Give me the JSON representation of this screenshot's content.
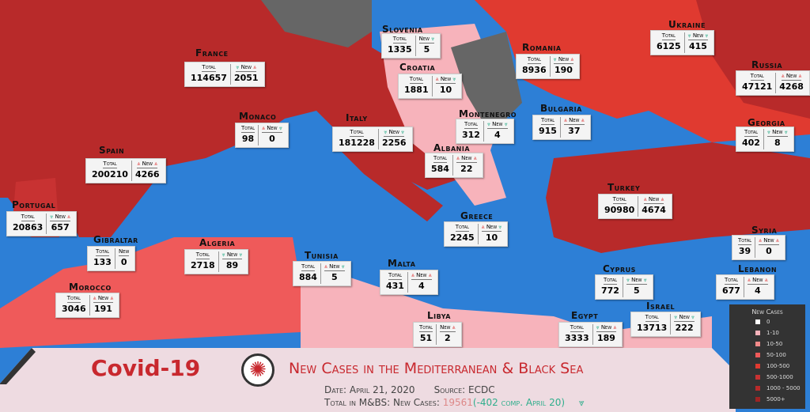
{
  "banner": {
    "title": "Covid-19",
    "subtitle": "New Cases in the Mediterranean & Black Sea",
    "date": "Date: April 21, 2020",
    "source": "Source: ECDC",
    "total_label": "Total in M&BS: New Cases:",
    "total_value": "19561",
    "total_change": "(-402 comp. April 20)",
    "total_trend": "down"
  },
  "labels": {
    "total": "Total",
    "new": "New"
  },
  "legend": {
    "title": "New Cases",
    "items": [
      {
        "label": "0",
        "color": "#ffffff"
      },
      {
        "label": "1-10",
        "color": "#f7b3bb"
      },
      {
        "label": "10-50",
        "color": "#f28a8a"
      },
      {
        "label": "50-100",
        "color": "#ef5a5a"
      },
      {
        "label": "100-500",
        "color": "#e03a30"
      },
      {
        "label": "500-1000",
        "color": "#c83232"
      },
      {
        "label": "1000 - 5000",
        "color": "#b82a2a"
      },
      {
        "label": "5000+",
        "color": "#9e2424"
      }
    ]
  },
  "countries": [
    {
      "name": "Slovenia",
      "total": "1335",
      "new": "5",
      "trend": [
        "",
        "down"
      ]
    },
    {
      "name": "Croatia",
      "total": "1881",
      "new": "10",
      "trend": [
        "up",
        "down"
      ]
    },
    {
      "name": "France",
      "total": "114657",
      "new": "2051",
      "trend": [
        "down",
        "up"
      ]
    },
    {
      "name": "Monaco",
      "total": "98",
      "new": "0",
      "trend": [
        "up",
        "down"
      ]
    },
    {
      "name": "Italy",
      "total": "181228",
      "new": "2256",
      "trend": [
        "down",
        "down"
      ]
    },
    {
      "name": "Spain",
      "total": "200210",
      "new": "4266",
      "trend": [
        "up",
        "up"
      ]
    },
    {
      "name": "Portugal",
      "total": "20863",
      "new": "657",
      "trend": [
        "down",
        "up"
      ]
    },
    {
      "name": "Gibraltar",
      "total": "133",
      "new": "0",
      "trend": [
        "",
        ""
      ]
    },
    {
      "name": "Algeria",
      "total": "2718",
      "new": "89",
      "trend": [
        "down",
        "down"
      ]
    },
    {
      "name": "Morocco",
      "total": "3046",
      "new": "191",
      "trend": [
        "up",
        "up"
      ]
    },
    {
      "name": "Tunisia",
      "total": "884",
      "new": "5",
      "trend": [
        "up",
        "down"
      ]
    },
    {
      "name": "Malta",
      "total": "431",
      "new": "4",
      "trend": [
        "up",
        "up"
      ]
    },
    {
      "name": "Libya",
      "total": "51",
      "new": "2",
      "trend": [
        "",
        "up"
      ]
    },
    {
      "name": "Egypt",
      "total": "3333",
      "new": "189",
      "trend": [
        "down",
        "up"
      ]
    },
    {
      "name": "Israel",
      "total": "13713",
      "new": "222",
      "trend": [
        "down",
        "down"
      ]
    },
    {
      "name": "Cyprus",
      "total": "772",
      "new": "5",
      "trend": [
        "down",
        "down"
      ]
    },
    {
      "name": "Lebanon",
      "total": "677",
      "new": "4",
      "trend": [
        "up",
        "up"
      ]
    },
    {
      "name": "Syria",
      "total": "39",
      "new": "0",
      "trend": [
        "up",
        "up"
      ]
    },
    {
      "name": "Greece",
      "total": "2245",
      "new": "10",
      "trend": [
        "up",
        "down"
      ]
    },
    {
      "name": "Albania",
      "total": "584",
      "new": "22",
      "trend": [
        "up",
        "up"
      ]
    },
    {
      "name": "Montenegro",
      "total": "312",
      "new": "4",
      "trend": [
        "down",
        "down"
      ]
    },
    {
      "name": "Bulgaria",
      "total": "915",
      "new": "37",
      "trend": [
        "up",
        "up"
      ]
    },
    {
      "name": "Romania",
      "total": "8936",
      "new": "190",
      "trend": [
        "down",
        "up"
      ]
    },
    {
      "name": "Ukraine",
      "total": "6125",
      "new": "415",
      "trend": [
        "down",
        "down"
      ]
    },
    {
      "name": "Russia",
      "total": "47121",
      "new": "4268",
      "trend": [
        "up",
        "up"
      ]
    },
    {
      "name": "Georgia",
      "total": "402",
      "new": "8",
      "trend": [
        "down",
        "down"
      ]
    },
    {
      "name": "Turkey",
      "total": "90980",
      "new": "4674",
      "trend": [
        "up",
        "up"
      ]
    }
  ]
}
